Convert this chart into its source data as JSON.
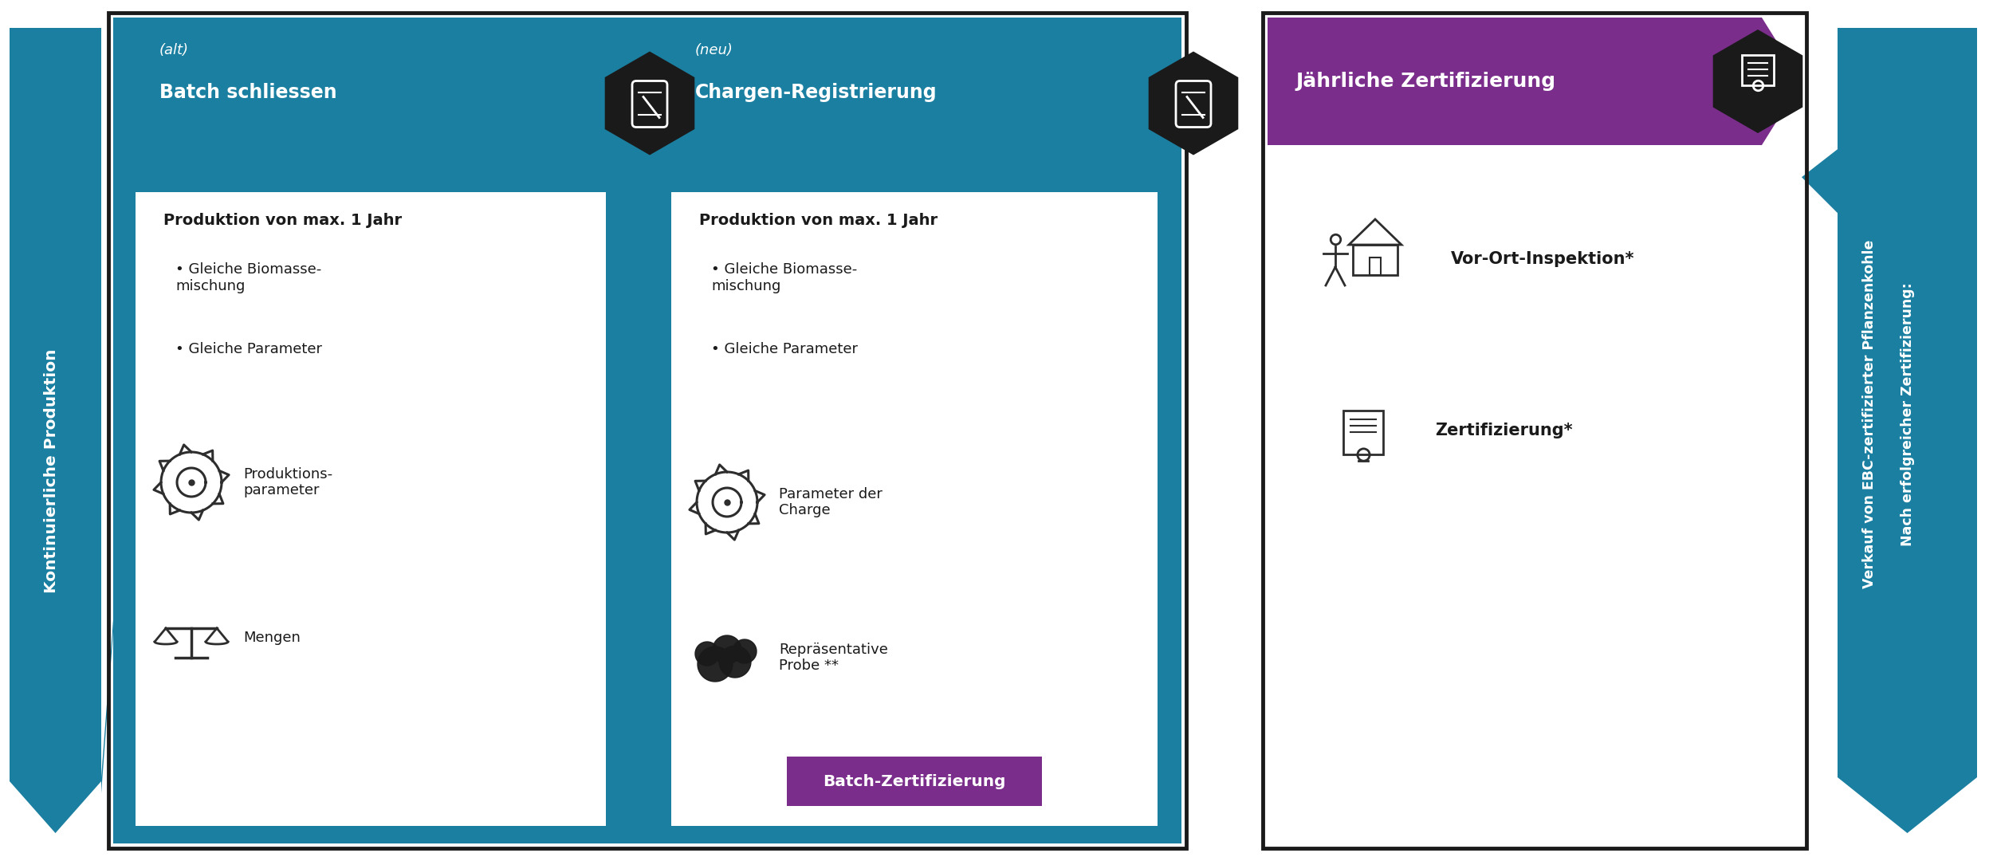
{
  "bg_color": "#ffffff",
  "teal_color": "#1a7fa0",
  "black_color": "#1a1a1a",
  "purple_color": "#7b2d8b",
  "white": "#ffffff",
  "dark_gray": "#2d2d2d",
  "figsize": [
    25.0,
    10.8
  ],
  "dpi": 100,
  "left_arrow_label": "Kontinuierliche Produktion",
  "right_arrow_label1": "Nach erfolgreicher Zertifizierung:",
  "right_arrow_label2": "Verkauf von EBC-zertifizierter Pflanzenkohle",
  "box1_title_small": "(alt)",
  "box1_title_big": "Batch schliessen",
  "box1_text1": "Produktion von max. 1 Jahr",
  "box1_bullets": [
    "Gleiche Biomasse-\nmischung",
    "Gleiche Parameter"
  ],
  "box1_icon1_label": "Produktions-\nparameter",
  "box1_icon2_label": "Mengen",
  "box2_title_small": "(neu)",
  "box2_title_big": "Chargen-Registrierung",
  "box2_text1": "Produktion von max. 1 Jahr",
  "box2_bullets": [
    "Gleiche Biomasse-\nmischung",
    "Gleiche Parameter"
  ],
  "box2_icon1_label": "Parameter der\nCharge",
  "box2_icon2_label": "Repräsentative\nProbe **",
  "box2_bottom_label": "Batch-Zertifizierung",
  "box3_title": "Jährliche Zertifizierung",
  "box3_icon1_label": "Vor-Ort-Inspektion*",
  "box3_icon2_label": "Zertifizierung*"
}
